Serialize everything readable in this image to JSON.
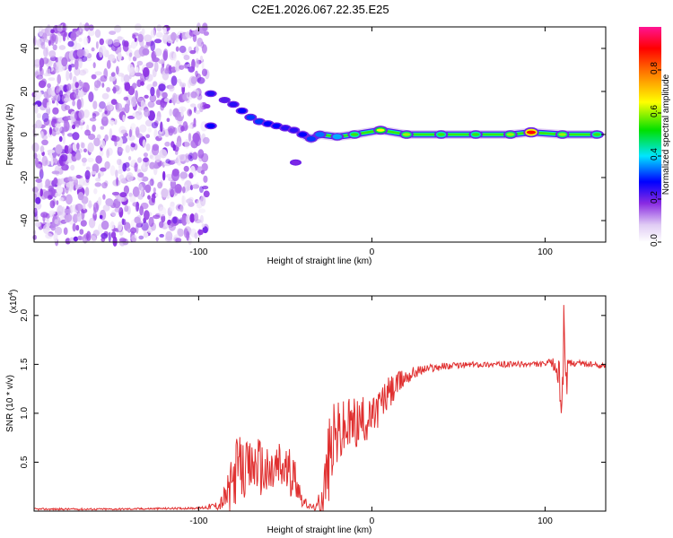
{
  "title": "C2E1.2026.067.22.35.E25",
  "chart_data": [
    {
      "type": "heatmap",
      "name": "spectrogram",
      "xlabel": "Height of straight line (km)",
      "ylabel": "Frequency (Hz)",
      "xlim": [
        -195,
        135
      ],
      "ylim": [
        -50,
        50
      ],
      "xticks": [
        -100,
        0,
        100
      ],
      "yticks": [
        -40,
        -20,
        0,
        20,
        40
      ],
      "noise_region_x": [
        -195,
        -95
      ],
      "signal_ridge": [
        {
          "x": -93,
          "y": 19,
          "amp": 0.25
        },
        {
          "x": -93,
          "y": 4,
          "amp": 0.3
        },
        {
          "x": -85,
          "y": 16,
          "amp": 0.2
        },
        {
          "x": -80,
          "y": 14,
          "amp": 0.25
        },
        {
          "x": -75,
          "y": 11,
          "amp": 0.3
        },
        {
          "x": -70,
          "y": 8,
          "amp": 0.35
        },
        {
          "x": -65,
          "y": 6,
          "amp": 0.35
        },
        {
          "x": -60,
          "y": 5,
          "amp": 0.3
        },
        {
          "x": -55,
          "y": 4,
          "amp": 0.3
        },
        {
          "x": -50,
          "y": 3,
          "amp": 0.25
        },
        {
          "x": -45,
          "y": 2,
          "amp": 0.25
        },
        {
          "x": -44,
          "y": -13,
          "amp": 0.15
        },
        {
          "x": -40,
          "y": 0,
          "amp": 0.3
        },
        {
          "x": -35,
          "y": -2,
          "amp": 0.35
        },
        {
          "x": -30,
          "y": 0,
          "amp": 0.4
        },
        {
          "x": -20,
          "y": -1,
          "amp": 0.45
        },
        {
          "x": -10,
          "y": 0,
          "amp": 0.55
        },
        {
          "x": 5,
          "y": 2,
          "amp": 0.65
        },
        {
          "x": 20,
          "y": 0,
          "amp": 0.6
        },
        {
          "x": 40,
          "y": 0,
          "amp": 0.55
        },
        {
          "x": 60,
          "y": 0,
          "amp": 0.55
        },
        {
          "x": 80,
          "y": 0,
          "amp": 0.6
        },
        {
          "x": 92,
          "y": 1,
          "amp": 0.9
        },
        {
          "x": 110,
          "y": 0,
          "amp": 0.6
        },
        {
          "x": 130,
          "y": 0,
          "amp": 0.55
        }
      ]
    },
    {
      "type": "colorbar",
      "name": "colorbar",
      "label": "Normalized spectral amplitude",
      "range": [
        0,
        1
      ],
      "ticks": [
        "0.0",
        "0.2",
        "0.4",
        "0.6",
        "0.8"
      ],
      "tick_values": [
        0,
        0.2,
        0.4,
        0.6,
        0.8
      ]
    },
    {
      "type": "line",
      "name": "snr",
      "xlabel": "Height of straight line (km)",
      "ylabel": "SNR (10 * v/v)",
      "scale_note_base": "(x10",
      "scale_note_exp": "4",
      "scale_note_end": ")",
      "xlim": [
        -195,
        135
      ],
      "ylim": [
        0,
        2.2
      ],
      "xticks": [
        -100,
        0,
        100
      ],
      "yticks": [
        "0.5",
        "1.0",
        "1.5",
        "2.0"
      ],
      "ytick_values": [
        0.5,
        1.0,
        1.5,
        2.0
      ],
      "color": "#e03030",
      "x": [
        -195,
        -150,
        -100,
        -88,
        -82,
        -78,
        -72,
        -66,
        -60,
        -54,
        -48,
        -44,
        -40,
        -36,
        -32,
        -28,
        -25,
        -22,
        -18,
        -14,
        -10,
        -5,
        0,
        5,
        10,
        15,
        20,
        25,
        30,
        40,
        50,
        60,
        70,
        80,
        90,
        100,
        104,
        108,
        110,
        111,
        112,
        114,
        118,
        125,
        135
      ],
      "y": [
        0.02,
        0.02,
        0.03,
        0.06,
        0.2,
        0.45,
        0.4,
        0.5,
        0.35,
        0.45,
        0.4,
        0.35,
        0.1,
        0.05,
        0.03,
        0.2,
        0.5,
        0.75,
        0.8,
        0.85,
        0.9,
        0.92,
        0.95,
        1.1,
        1.2,
        1.3,
        1.38,
        1.42,
        1.45,
        1.48,
        1.49,
        1.5,
        1.5,
        1.5,
        1.5,
        1.5,
        1.52,
        1.4,
        1.1,
        2.15,
        1.3,
        1.5,
        1.52,
        1.5,
        1.48
      ],
      "noise_amp": [
        0.01,
        0.01,
        0.01,
        0.05,
        0.25,
        0.35,
        0.3,
        0.3,
        0.3,
        0.3,
        0.25,
        0.2,
        0.06,
        0.03,
        0.03,
        0.3,
        0.45,
        0.35,
        0.35,
        0.3,
        0.3,
        0.25,
        0.2,
        0.2,
        0.18,
        0.12,
        0.1,
        0.06,
        0.05,
        0.04,
        0.03,
        0.03,
        0.03,
        0.03,
        0.03,
        0.03,
        0.05,
        0.15,
        0.3,
        0.3,
        0.25,
        0.05,
        0.03,
        0.03,
        0.03
      ]
    }
  ]
}
